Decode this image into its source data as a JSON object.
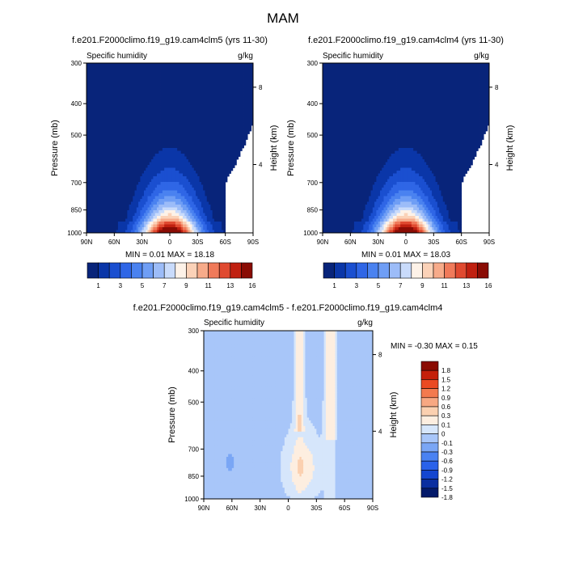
{
  "title": "MAM",
  "colormaps": {
    "abs": [
      "#08247a",
      "#0a36a8",
      "#1a4fd0",
      "#2f66e6",
      "#4a82f0",
      "#6f9ef5",
      "#9cbcf8",
      "#c9dbfb",
      "#fdf2e8",
      "#fbd2b8",
      "#f7ab8a",
      "#f07a5a",
      "#e04a30",
      "#c02010",
      "#8a0c04"
    ],
    "diff": [
      "#041a6a",
      "#0a2ea0",
      "#1446d0",
      "#2a62ea",
      "#4a82f2",
      "#7aa6f5",
      "#a8c6f9",
      "#d6e6fb",
      "#fdeee0",
      "#fbd0b0",
      "#f8a882",
      "#f37a4e",
      "#ea4a22",
      "#c4200a",
      "#8a0b02"
    ]
  },
  "panel_common": {
    "subtitle_left": "Specific humidity",
    "subtitle_right": "g/kg",
    "ylabel": "Pressure (mb)",
    "y2label": "Height (km)",
    "xticks": [
      "90N",
      "60N",
      "30N",
      "0",
      "30S",
      "60S",
      "90S"
    ],
    "yticks": [
      "300",
      "400",
      "500",
      "700",
      "850",
      "1000"
    ],
    "y2ticks": [
      "8",
      "4"
    ]
  },
  "chart_data": [
    {
      "type": "heatmap",
      "title": "f.e201.F2000climo.f19_g19.cam4clm5 (yrs 11-30)",
      "x_range": [
        90,
        -90
      ],
      "y_range_mb": [
        1000,
        300
      ],
      "levels": [
        1,
        2,
        3,
        4,
        5,
        6,
        7,
        8,
        9,
        10,
        11,
        12,
        13,
        14,
        16
      ],
      "level_labels": [
        "1",
        "3",
        "5",
        "7",
        "9",
        "11",
        "13",
        "16"
      ],
      "min_label": "MIN =   0.01   MAX =   18.18",
      "min": 0.01,
      "max": 18.18
    },
    {
      "type": "heatmap",
      "title": "f.e201.F2000climo.f19_g19.cam4clm4 (yrs 11-30)",
      "x_range": [
        90,
        -90
      ],
      "y_range_mb": [
        1000,
        300
      ],
      "levels": [
        1,
        2,
        3,
        4,
        5,
        6,
        7,
        8,
        9,
        10,
        11,
        12,
        13,
        14,
        16
      ],
      "level_labels": [
        "1",
        "3",
        "5",
        "7",
        "9",
        "11",
        "13",
        "16"
      ],
      "min_label": "MIN =   0.01   MAX =   18.03",
      "min": 0.01,
      "max": 18.03
    },
    {
      "type": "heatmap",
      "title": "f.e201.F2000climo.f19_g19.cam4clm5 - f.e201.F2000climo.f19_g19.cam4clm4",
      "x_range": [
        90,
        -90
      ],
      "y_range_mb": [
        1000,
        300
      ],
      "levels": [
        -1.8,
        -1.5,
        -1.2,
        -0.9,
        -0.6,
        -0.3,
        -0.1,
        0,
        0.1,
        0.3,
        0.6,
        0.9,
        1.2,
        1.5,
        1.8
      ],
      "level_labels": [
        "1.8",
        "1.5",
        "1.2",
        "0.9",
        "0.6",
        "0.3",
        "0.1",
        "0",
        "-0.1",
        "-0.3",
        "-0.6",
        "-0.9",
        "-1.2",
        "-1.5",
        "-1.8"
      ],
      "min_label": "MIN =  -0.30   MAX =    0.15",
      "min": -0.3,
      "max": 0.15
    }
  ]
}
